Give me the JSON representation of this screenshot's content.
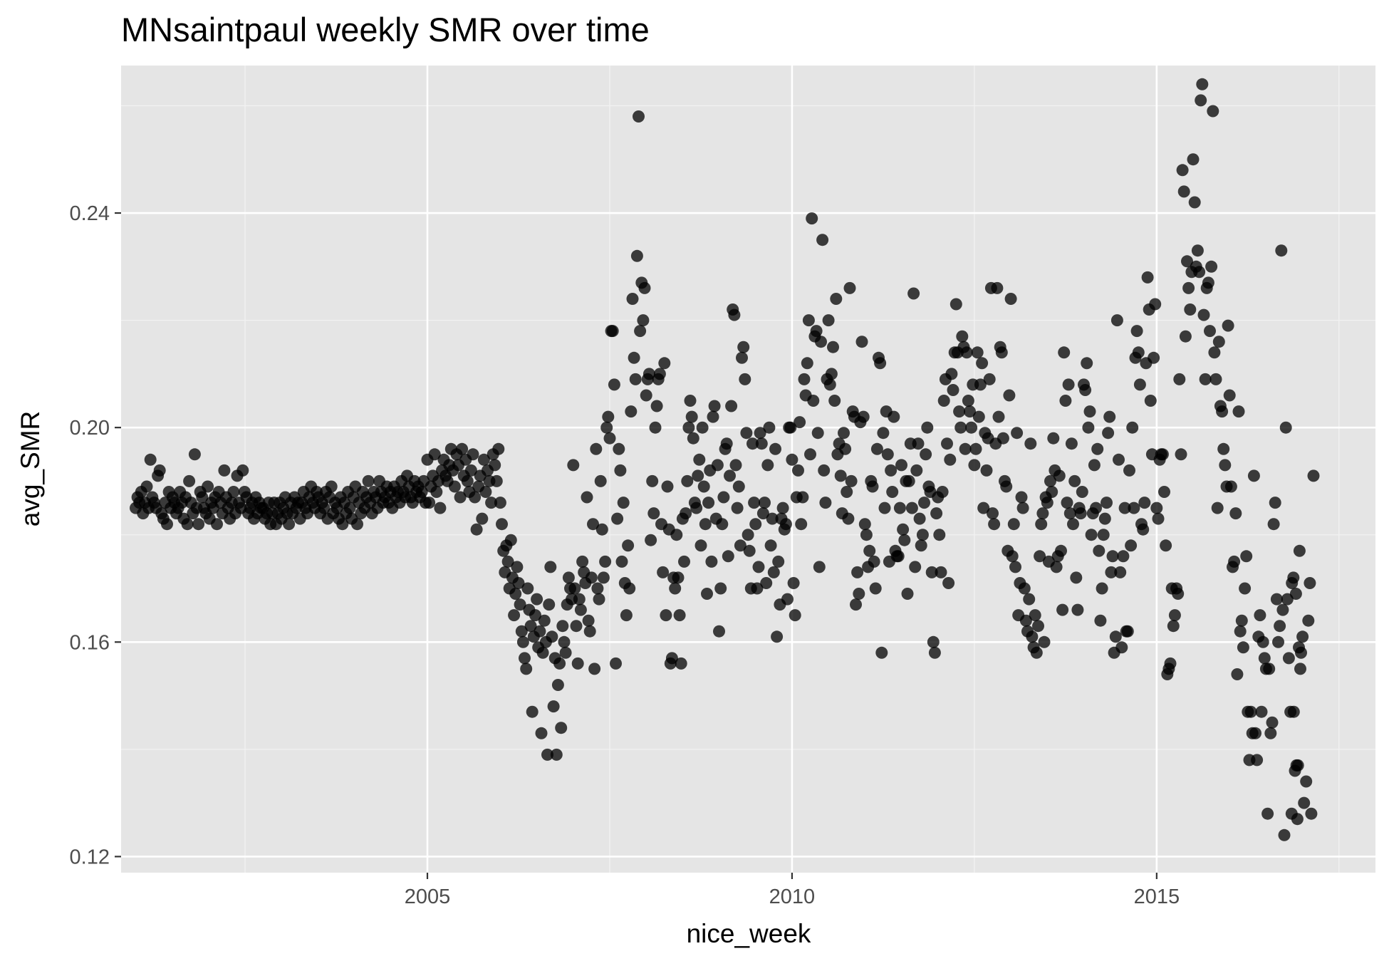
{
  "chart_data": {
    "type": "scatter",
    "title": "MNsaintpaul weekly SMR over time",
    "xlabel": "nice_week",
    "ylabel": "avg_SMR",
    "xlim": [
      2000.8,
      2018.0
    ],
    "ylim": [
      0.117,
      0.2675
    ],
    "x_ticks": [
      2005,
      2010,
      2015
    ],
    "x_tick_labels": [
      "2005",
      "2010",
      "2015"
    ],
    "y_ticks": [
      0.12,
      0.16,
      0.2,
      0.24
    ],
    "y_tick_labels": [
      "0.12",
      "0.16",
      "0.20",
      "0.24"
    ],
    "grid": true,
    "legend": "none",
    "point_color": "#000000",
    "panel_background": "#e5e5e5",
    "x_segments": [
      {
        "from": 2001.0,
        "to": 2005.0,
        "pairs": [
          0.185,
          0.187,
          0.186,
          0.188,
          0.184,
          0.186,
          0.189,
          0.185,
          0.194,
          0.187,
          0.186,
          0.185,
          0.191,
          0.192,
          0.184,
          0.183,
          0.186,
          0.182,
          0.188,
          0.185,
          0.187,
          0.186,
          0.184,
          0.185,
          0.188,
          0.186,
          0.183,
          0.187,
          0.182,
          0.19,
          0.186,
          0.184,
          0.195,
          0.185,
          0.182,
          0.188,
          0.187,
          0.185,
          0.184,
          0.189,
          0.183,
          0.186,
          0.185,
          0.187,
          0.182,
          0.188,
          0.186,
          0.184,
          0.192,
          0.187,
          0.185,
          0.183,
          0.186,
          0.188,
          0.184,
          0.191,
          0.186,
          0.185,
          0.192,
          0.188,
          0.187,
          0.184,
          0.185,
          0.186,
          0.183,
          0.187,
          0.184,
          0.186,
          0.185,
          0.185,
          0.183,
          0.184,
          0.186,
          0.182,
          0.184,
          0.186,
          0.182,
          0.184,
          0.186,
          0.183,
          0.185,
          0.187,
          0.184,
          0.182,
          0.186,
          0.184,
          0.187,
          0.185,
          0.186,
          0.183,
          0.186,
          0.188,
          0.185,
          0.184,
          0.187,
          0.189,
          0.186,
          0.185,
          0.188,
          0.187,
          0.184,
          0.186,
          0.185,
          0.188,
          0.183,
          0.187,
          0.189,
          0.184,
          0.186,
          0.185,
          0.183,
          0.187,
          0.182,
          0.186,
          0.184,
          0.188,
          0.185,
          0.183,
          0.187,
          0.189,
          0.182,
          0.186,
          0.184,
          0.188,
          0.185,
          0.187,
          0.19,
          0.186,
          0.184,
          0.188,
          0.187,
          0.185,
          0.19,
          0.188,
          0.186,
          0.187,
          0.189,
          0.186,
          0.188,
          0.185,
          0.189,
          0.187,
          0.188,
          0.186,
          0.19,
          0.188,
          0.187,
          0.191,
          0.189,
          0.187,
          0.186,
          0.19,
          0.188,
          0.189,
          0.187,
          0.188,
          0.19,
          0.186
        ]
      },
      {
        "from": 2005.0,
        "to": 2006.0,
        "pairs": [
          0.194,
          0.186,
          0.189,
          0.191,
          0.195,
          0.188,
          0.19,
          0.185,
          0.192,
          0.194,
          0.191,
          0.19,
          0.193,
          0.196,
          0.192,
          0.189,
          0.195,
          0.193,
          0.187,
          0.196,
          0.191,
          0.194,
          0.19,
          0.188,
          0.192,
          0.195,
          0.187,
          0.181,
          0.189,
          0.191,
          0.183,
          0.194,
          0.188,
          0.192,
          0.19,
          0.186,
          0.195,
          0.193,
          0.19,
          0.196
        ]
      },
      {
        "from": 2006.0,
        "to": 2007.0,
        "pairs": [
          0.186,
          0.182,
          0.177,
          0.173,
          0.178,
          0.175,
          0.17,
          0.179,
          0.172,
          0.165,
          0.169,
          0.174,
          0.171,
          0.167,
          0.162,
          0.16,
          0.157,
          0.155,
          0.17,
          0.166,
          0.163,
          0.147,
          0.161,
          0.165,
          0.168,
          0.159,
          0.162,
          0.143,
          0.158,
          0.164,
          0.16,
          0.139,
          0.167,
          0.174,
          0.161,
          0.148,
          0.157,
          0.139,
          0.152,
          0.156,
          0.144,
          0.163,
          0.16,
          0.158,
          0.167,
          0.172,
          0.17,
          0.168
        ]
      },
      {
        "from": 2007.0,
        "to": 2008.0,
        "pairs": [
          0.193,
          0.17,
          0.163,
          0.156,
          0.168,
          0.166,
          0.175,
          0.173,
          0.171,
          0.187,
          0.164,
          0.162,
          0.172,
          0.182,
          0.155,
          0.196,
          0.17,
          0.168,
          0.19,
          0.181,
          0.172,
          0.175,
          0.2,
          0.202,
          0.198,
          0.218,
          0.218,
          0.208,
          0.156,
          0.183,
          0.196,
          0.192,
          0.175,
          0.186,
          0.171,
          0.165,
          0.178,
          0.17,
          0.203,
          0.224,
          0.213,
          0.209,
          0.232,
          0.258,
          0.218,
          0.227,
          0.22,
          0.226
        ]
      },
      {
        "from": 2008.0,
        "to": 2009.0,
        "pairs": [
          0.206,
          0.209,
          0.21,
          0.179,
          0.19,
          0.184,
          0.2,
          0.204,
          0.209,
          0.21,
          0.182,
          0.173,
          0.212,
          0.165,
          0.189,
          0.181,
          0.156,
          0.157,
          0.172,
          0.17,
          0.18,
          0.172,
          0.165,
          0.156,
          0.183,
          0.175,
          0.184,
          0.19,
          0.2,
          0.205,
          0.202,
          0.198,
          0.186,
          0.185,
          0.191,
          0.194,
          0.178,
          0.2,
          0.189,
          0.182,
          0.169,
          0.186,
          0.192,
          0.175,
          0.202,
          0.204,
          0.183,
          0.193
        ]
      },
      {
        "from": 2009.0,
        "to": 2010.0,
        "pairs": [
          0.162,
          0.17,
          0.182,
          0.187,
          0.196,
          0.197,
          0.176,
          0.191,
          0.204,
          0.222,
          0.221,
          0.193,
          0.185,
          0.189,
          0.178,
          0.213,
          0.215,
          0.209,
          0.199,
          0.18,
          0.177,
          0.17,
          0.197,
          0.186,
          0.182,
          0.17,
          0.174,
          0.199,
          0.197,
          0.184,
          0.186,
          0.171,
          0.193,
          0.2,
          0.178,
          0.183,
          0.173,
          0.196,
          0.161,
          0.175,
          0.167,
          0.183,
          0.185,
          0.181,
          0.182,
          0.168,
          0.2,
          0.2
        ]
      },
      {
        "from": 2010.0,
        "to": 2011.0,
        "pairs": [
          0.194,
          0.171,
          0.165,
          0.187,
          0.192,
          0.201,
          0.182,
          0.187,
          0.209,
          0.206,
          0.212,
          0.22,
          0.195,
          0.239,
          0.205,
          0.217,
          0.218,
          0.199,
          0.174,
          0.216,
          0.235,
          0.192,
          0.186,
          0.209,
          0.22,
          0.208,
          0.21,
          0.215,
          0.205,
          0.224,
          0.195,
          0.197,
          0.191,
          0.184,
          0.199,
          0.196,
          0.188,
          0.183,
          0.226,
          0.19,
          0.203,
          0.202,
          0.167,
          0.173,
          0.169,
          0.201,
          0.216,
          0.202
        ]
      },
      {
        "from": 2011.0,
        "to": 2012.0,
        "pairs": [
          0.182,
          0.18,
          0.174,
          0.177,
          0.19,
          0.189,
          0.175,
          0.17,
          0.196,
          0.213,
          0.212,
          0.158,
          0.199,
          0.185,
          0.203,
          0.195,
          0.175,
          0.192,
          0.188,
          0.202,
          0.177,
          0.176,
          0.176,
          0.185,
          0.193,
          0.181,
          0.179,
          0.19,
          0.169,
          0.19,
          0.197,
          0.185,
          0.225,
          0.174,
          0.192,
          0.197,
          0.183,
          0.178,
          0.18,
          0.186,
          0.195,
          0.2,
          0.189,
          0.188,
          0.173,
          0.16,
          0.158,
          0.184
        ]
      },
      {
        "from": 2012.0,
        "to": 2013.0,
        "pairs": [
          0.187,
          0.18,
          0.173,
          0.188,
          0.205,
          0.209,
          0.197,
          0.171,
          0.194,
          0.21,
          0.207,
          0.214,
          0.223,
          0.214,
          0.203,
          0.2,
          0.217,
          0.215,
          0.196,
          0.214,
          0.205,
          0.203,
          0.2,
          0.208,
          0.193,
          0.196,
          0.214,
          0.202,
          0.208,
          0.212,
          0.185,
          0.199,
          0.192,
          0.198,
          0.209,
          0.226,
          0.184,
          0.182,
          0.197,
          0.226,
          0.202,
          0.215,
          0.214,
          0.198,
          0.19,
          0.189,
          0.177,
          0.206
        ]
      },
      {
        "from": 2013.0,
        "to": 2014.0,
        "pairs": [
          0.224,
          0.176,
          0.182,
          0.174,
          0.199,
          0.165,
          0.171,
          0.187,
          0.185,
          0.17,
          0.164,
          0.162,
          0.168,
          0.197,
          0.161,
          0.159,
          0.165,
          0.158,
          0.163,
          0.176,
          0.182,
          0.184,
          0.16,
          0.187,
          0.186,
          0.175,
          0.19,
          0.188,
          0.198,
          0.192,
          0.174,
          0.176,
          0.191,
          0.177,
          0.166,
          0.214,
          0.205,
          0.186,
          0.208,
          0.184,
          0.197,
          0.182,
          0.19,
          0.172,
          0.166,
          0.185,
          0.184,
          0.188
        ]
      },
      {
        "from": 2014.0,
        "to": 2015.0,
        "pairs": [
          0.208,
          0.207,
          0.212,
          0.2,
          0.203,
          0.18,
          0.184,
          0.193,
          0.185,
          0.196,
          0.177,
          0.164,
          0.17,
          0.18,
          0.183,
          0.186,
          0.199,
          0.202,
          0.173,
          0.176,
          0.158,
          0.161,
          0.22,
          0.194,
          0.173,
          0.159,
          0.176,
          0.185,
          0.162,
          0.162,
          0.192,
          0.178,
          0.2,
          0.185,
          0.213,
          0.218,
          0.214,
          0.208,
          0.182,
          0.181,
          0.186,
          0.212,
          0.228,
          0.222,
          0.205,
          0.195,
          0.213,
          0.223
        ]
      },
      {
        "from": 2015.0,
        "to": 2016.0,
        "pairs": [
          0.185,
          0.183,
          0.194,
          0.195,
          0.195,
          0.188,
          0.178,
          0.154,
          0.155,
          0.156,
          0.17,
          0.163,
          0.165,
          0.17,
          0.169,
          0.209,
          0.195,
          0.248,
          0.244,
          0.217,
          0.231,
          0.226,
          0.222,
          0.229,
          0.25,
          0.242,
          0.23,
          0.233,
          0.229,
          0.261,
          0.264,
          0.221,
          0.209,
          0.226,
          0.227,
          0.218,
          0.23,
          0.259,
          0.214,
          0.209,
          0.185,
          0.216,
          0.204,
          0.203,
          0.196,
          0.193,
          0.189,
          0.219
        ]
      },
      {
        "from": 2016.0,
        "to": 2017.0,
        "pairs": [
          0.206,
          0.189,
          0.174,
          0.175,
          0.184,
          0.154,
          0.203,
          0.162,
          0.164,
          0.159,
          0.17,
          0.176,
          0.147,
          0.138,
          0.147,
          0.143,
          0.191,
          0.143,
          0.138,
          0.161,
          0.165,
          0.147,
          0.16,
          0.157,
          0.155,
          0.128,
          0.155,
          0.143,
          0.145,
          0.182,
          0.186,
          0.168,
          0.16,
          0.163,
          0.233,
          0.166,
          0.124,
          0.2,
          0.168,
          0.157,
          0.147,
          0.171,
          0.172,
          0.136,
          0.137,
          0.137,
          0.177,
          0.158
        ]
      }
    ],
    "tail_points": [
      {
        "x": 2016.85,
        "y": 0.128
      },
      {
        "x": 2016.88,
        "y": 0.147
      },
      {
        "x": 2016.91,
        "y": 0.169
      },
      {
        "x": 2016.93,
        "y": 0.127
      },
      {
        "x": 2016.95,
        "y": 0.159
      },
      {
        "x": 2016.97,
        "y": 0.155
      },
      {
        "x": 2017.0,
        "y": 0.161
      },
      {
        "x": 2017.02,
        "y": 0.13
      },
      {
        "x": 2017.05,
        "y": 0.134
      },
      {
        "x": 2017.08,
        "y": 0.164
      },
      {
        "x": 2017.1,
        "y": 0.171
      },
      {
        "x": 2017.12,
        "y": 0.128
      },
      {
        "x": 2017.15,
        "y": 0.191
      }
    ]
  }
}
